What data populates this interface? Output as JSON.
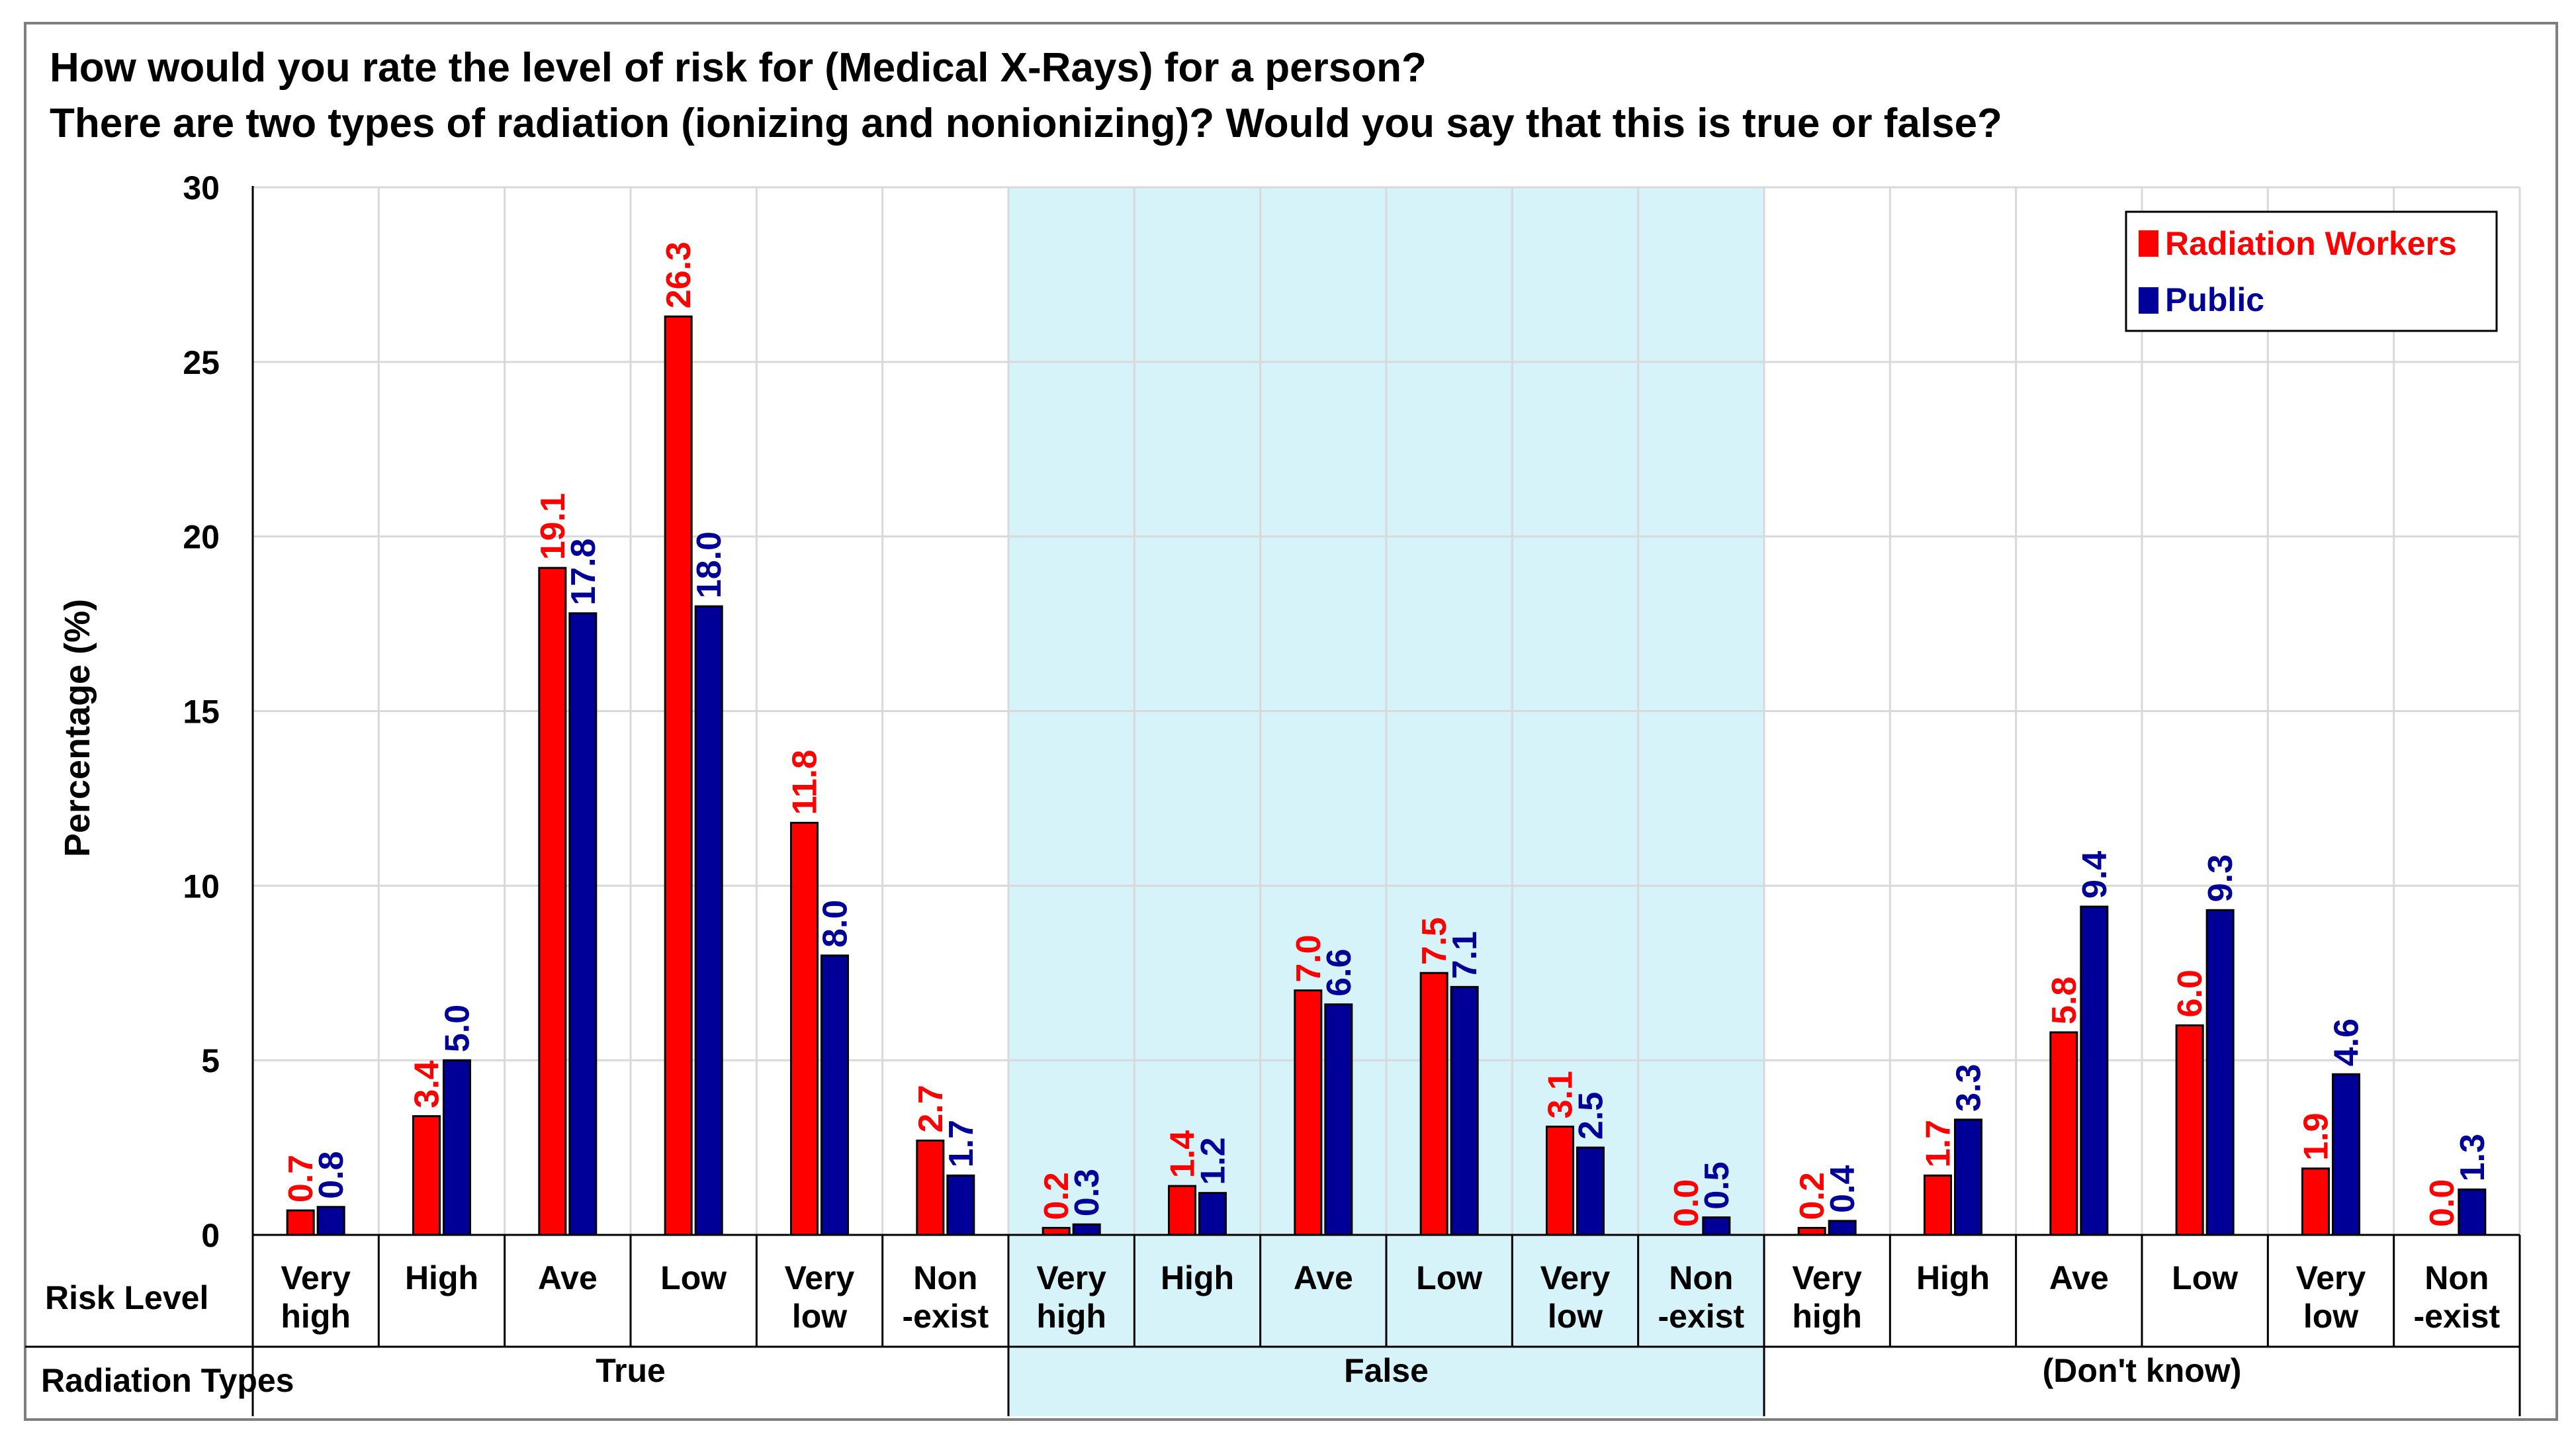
{
  "chart_data": {
    "type": "bar",
    "title_lines": [
      "How would you rate the level of risk for (Medical X-Rays) for a person?",
      "There are two types of radiation (ionizing and nonionizing)? Would you say that this is true or false?"
    ],
    "ylabel": "Percentage (%)",
    "ylim": [
      0,
      30
    ],
    "yticks": [
      "0",
      "5",
      "10",
      "15",
      "20",
      "25",
      "30"
    ],
    "grid": true,
    "legend_position": "top-right",
    "row_labels": {
      "risk_level": "Risk Level",
      "radiation_types": "Radiation Types"
    },
    "groups": [
      {
        "label": "True",
        "highlight": false
      },
      {
        "label": "False",
        "highlight": true
      },
      {
        "label": "(Don't know)",
        "highlight": false
      }
    ],
    "categories": [
      [
        "Very",
        "high"
      ],
      [
        "High"
      ],
      [
        "Ave"
      ],
      [
        "Low"
      ],
      [
        "Very",
        "low"
      ],
      [
        "Non",
        "-exist"
      ],
      [
        "Very",
        "high"
      ],
      [
        "High"
      ],
      [
        "Ave"
      ],
      [
        "Low"
      ],
      [
        "Very",
        "low"
      ],
      [
        "Non",
        "-exist"
      ],
      [
        "Very",
        "high"
      ],
      [
        "High"
      ],
      [
        "Ave"
      ],
      [
        "Low"
      ],
      [
        "Very",
        "low"
      ],
      [
        "Non",
        "-exist"
      ]
    ],
    "series": [
      {
        "name": "Radiation Workers",
        "color": "#ff0000",
        "label_color": "#ff0000",
        "values": [
          0.7,
          3.4,
          19.1,
          26.3,
          11.8,
          2.7,
          0.2,
          1.4,
          7.0,
          7.5,
          3.1,
          0.0,
          0.2,
          1.7,
          5.8,
          6.0,
          1.9,
          0.0
        ],
        "labels": [
          "0.7",
          "3.4",
          "19.1",
          "26.3",
          "11.8",
          "2.7",
          "0.2",
          "1.4",
          "7.0",
          "7.5",
          "3.1",
          "0.0",
          "0.2",
          "1.7",
          "5.8",
          "6.0",
          "1.9",
          "0.0"
        ]
      },
      {
        "name": "Public",
        "color": "#000099",
        "label_color": "#000099",
        "values": [
          0.8,
          5.0,
          17.8,
          18.0,
          8.0,
          1.7,
          0.3,
          1.2,
          6.6,
          7.1,
          2.5,
          0.5,
          0.4,
          3.3,
          9.4,
          9.3,
          4.6,
          1.3
        ],
        "labels": [
          "0.8",
          "5.0",
          "17.8",
          "18.0",
          "8.0",
          "1.7",
          "0.3",
          "1.2",
          "6.6",
          "7.1",
          "2.5",
          "0.5",
          "0.4",
          "3.3",
          "9.4",
          "9.3",
          "4.6",
          "1.3"
        ]
      }
    ],
    "highlight_color": "#d6f3fa"
  }
}
